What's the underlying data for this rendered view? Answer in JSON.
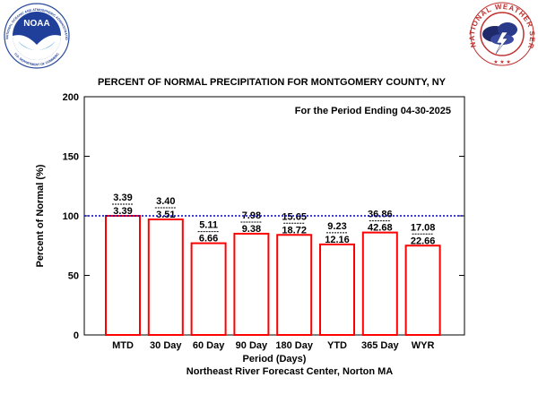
{
  "logos": {
    "noaa": {
      "text": "NOAA",
      "ring_text": "NATIONAL OCEANIC AND ATMOSPHERIC ADMINISTRATION",
      "bottom_text": "U.S. DEPARTMENT OF COMMERCE"
    },
    "nws": {
      "ring_text": "NATIONAL WEATHER SERVICE"
    }
  },
  "chart_data": {
    "type": "bar",
    "title": "PERCENT OF NORMAL PRECIPITATION FOR MONTGOMERY COUNTY, NY",
    "annotation": "For the Period Ending 04-30-2025",
    "xlabel": "Period (Days)",
    "ylabel": "Percent of Normal (%)",
    "footer": "Northeast River Forecast Center, Norton MA",
    "ylim": [
      0,
      200
    ],
    "yticks": [
      "0",
      "50",
      "100",
      "150",
      "200"
    ],
    "reference_line": 100,
    "categories": [
      "MTD",
      "30 Day",
      "60 Day",
      "90 Day",
      "180 Day",
      "YTD",
      "365 Day",
      "WYR"
    ],
    "values": [
      100,
      97,
      77,
      85,
      84,
      76,
      86,
      75
    ],
    "observed": [
      "3.39",
      "3.40",
      "5.11",
      "7.98",
      "15.65",
      "9.23",
      "36.86",
      "17.08"
    ],
    "normal": [
      "3.39",
      "3.51",
      "6.66",
      "9.38",
      "18.72",
      "12.16",
      "42.68",
      "22.66"
    ],
    "colors": {
      "bar": "#ff0000",
      "reference": "#0000cc"
    }
  }
}
